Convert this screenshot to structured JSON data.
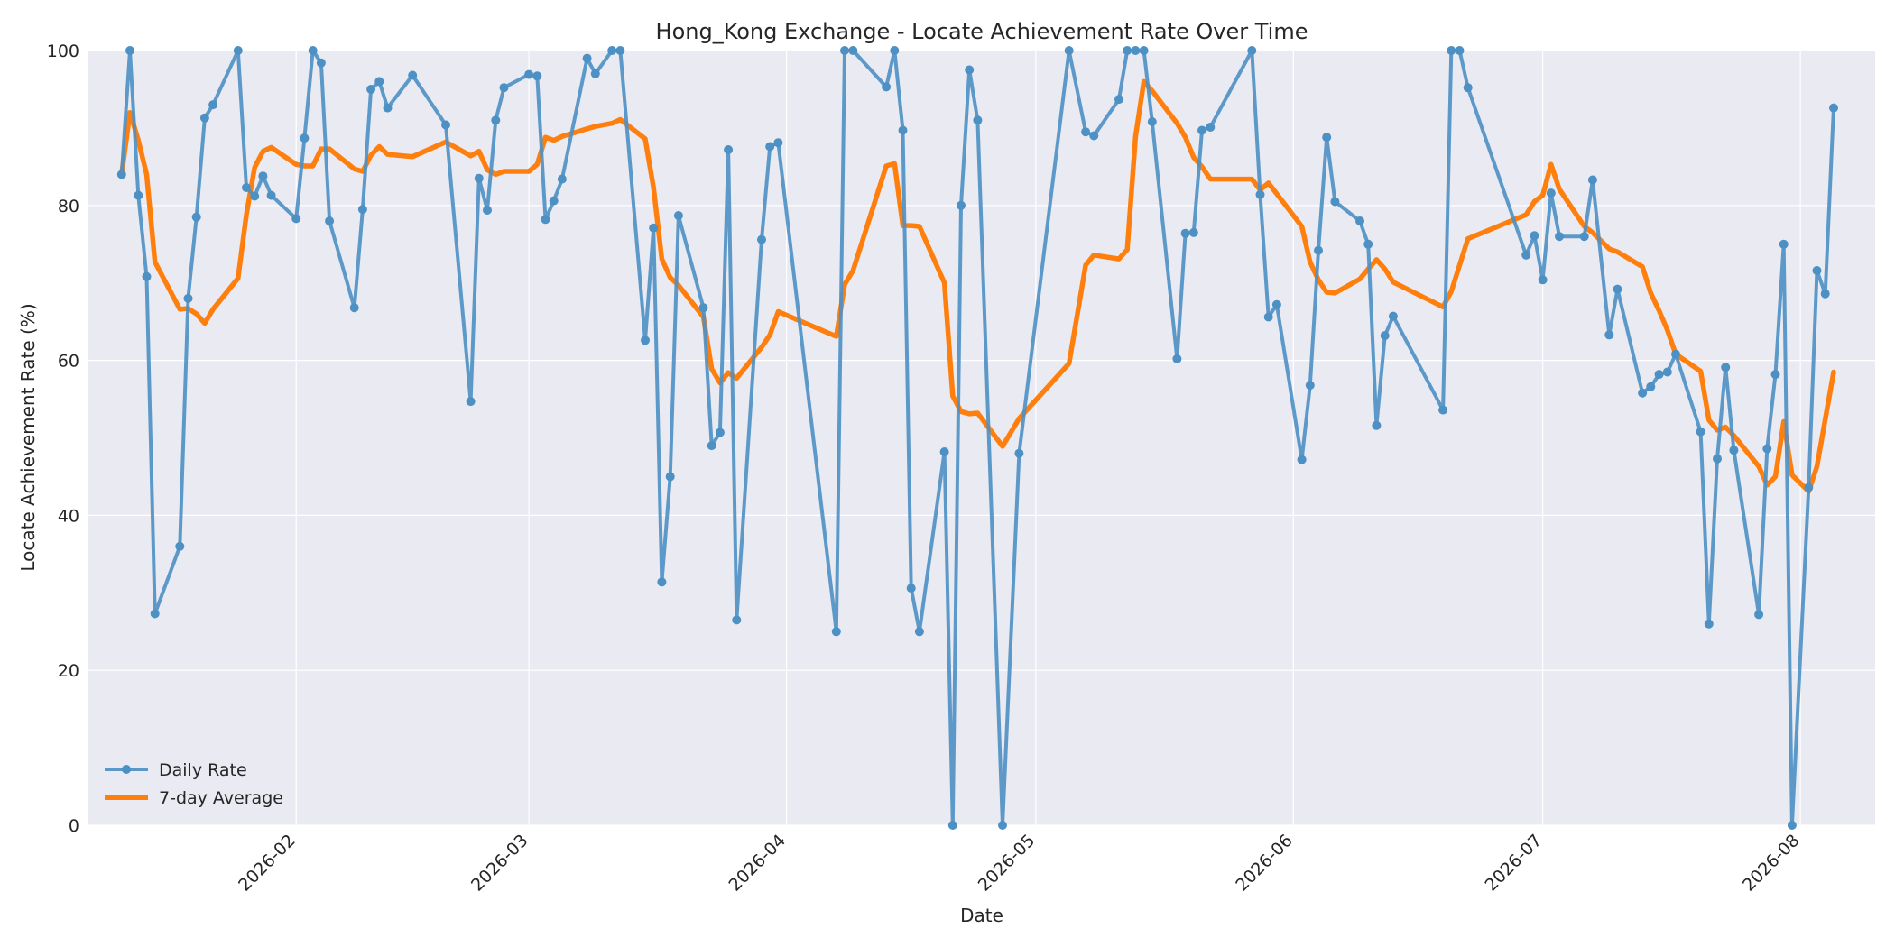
{
  "chart_data": {
    "type": "line",
    "title": "Hong_Kong Exchange - Locate Achievement Rate Over Time",
    "xlabel": "Date",
    "ylabel": "Locate Achievement Rate (%)",
    "ylim": [
      0,
      100
    ],
    "xlim": [
      "2026-01-07",
      "2026-08-10"
    ],
    "y_ticks": [
      0,
      20,
      40,
      60,
      80,
      100
    ],
    "x_ticks": [
      "2026-02-01",
      "2026-03-01",
      "2026-04-01",
      "2026-05-01",
      "2026-06-01",
      "2026-07-01",
      "2026-08-01"
    ],
    "x_tick_labels": [
      "2026-02",
      "2026-03",
      "2026-04",
      "2026-05",
      "2026-06",
      "2026-07",
      "2026-08"
    ],
    "grid": true,
    "legend_position": "lower-left",
    "colors": {
      "daily": "#4c90c4",
      "average": "#ff7f0e",
      "plot_background": "#eaeaf2",
      "grid": "#ffffff"
    },
    "series": [
      {
        "name": "Daily Rate",
        "marker": "circle",
        "points": [
          [
            "2026-01-11",
            84
          ],
          [
            "2026-01-12",
            100
          ],
          [
            "2026-01-13",
            81.3
          ],
          [
            "2026-01-14",
            70.8
          ],
          [
            "2026-01-15",
            27.3
          ],
          [
            "2026-01-18",
            36
          ],
          [
            "2026-01-19",
            68
          ],
          [
            "2026-01-20",
            78.5
          ],
          [
            "2026-01-21",
            91.3
          ],
          [
            "2026-01-22",
            93
          ],
          [
            "2026-01-25",
            100
          ],
          [
            "2026-01-26",
            82.3
          ],
          [
            "2026-01-27",
            81.2
          ],
          [
            "2026-01-28",
            83.8
          ],
          [
            "2026-01-29",
            81.3
          ],
          [
            "2026-02-01",
            78.3
          ],
          [
            "2026-02-02",
            88.7
          ],
          [
            "2026-02-03",
            100
          ],
          [
            "2026-02-04",
            98.4
          ],
          [
            "2026-02-05",
            78
          ],
          [
            "2026-02-08",
            66.8
          ],
          [
            "2026-02-09",
            79.5
          ],
          [
            "2026-02-10",
            95
          ],
          [
            "2026-02-11",
            96
          ],
          [
            "2026-02-12",
            92.6
          ],
          [
            "2026-02-15",
            96.8
          ],
          [
            "2026-02-19",
            90.4
          ],
          [
            "2026-02-22",
            54.7
          ],
          [
            "2026-02-23",
            83.5
          ],
          [
            "2026-02-24",
            79.4
          ],
          [
            "2026-02-25",
            91
          ],
          [
            "2026-02-26",
            95.2
          ],
          [
            "2026-03-01",
            96.9
          ],
          [
            "2026-03-02",
            96.7
          ],
          [
            "2026-03-03",
            78.2
          ],
          [
            "2026-03-04",
            80.6
          ],
          [
            "2026-03-05",
            83.4
          ],
          [
            "2026-03-08",
            99
          ],
          [
            "2026-03-09",
            97
          ],
          [
            "2026-03-11",
            100
          ],
          [
            "2026-03-12",
            100
          ],
          [
            "2026-03-15",
            62.6
          ],
          [
            "2026-03-16",
            77.1
          ],
          [
            "2026-03-17",
            31.4
          ],
          [
            "2026-03-18",
            45
          ],
          [
            "2026-03-19",
            78.7
          ],
          [
            "2026-03-22",
            66.8
          ],
          [
            "2026-03-23",
            49
          ],
          [
            "2026-03-24",
            50.7
          ],
          [
            "2026-03-25",
            87.2
          ],
          [
            "2026-03-26",
            26.5
          ],
          [
            "2026-03-29",
            75.6
          ],
          [
            "2026-03-30",
            87.6
          ],
          [
            "2026-03-31",
            88.1
          ],
          [
            "2026-04-07",
            25
          ],
          [
            "2026-04-08",
            100
          ],
          [
            "2026-04-09",
            100
          ],
          [
            "2026-04-13",
            95.3
          ],
          [
            "2026-04-14",
            100
          ],
          [
            "2026-04-15",
            89.7
          ],
          [
            "2026-04-16",
            30.6
          ],
          [
            "2026-04-17",
            25
          ],
          [
            "2026-04-20",
            48.2
          ],
          [
            "2026-04-21",
            0
          ],
          [
            "2026-04-22",
            80
          ],
          [
            "2026-04-23",
            97.5
          ],
          [
            "2026-04-24",
            91
          ],
          [
            "2026-04-27",
            0
          ],
          [
            "2026-04-29",
            48
          ],
          [
            "2026-05-05",
            100
          ],
          [
            "2026-05-07",
            89.5
          ],
          [
            "2026-05-08",
            89
          ],
          [
            "2026-05-11",
            93.7
          ],
          [
            "2026-05-12",
            100
          ],
          [
            "2026-05-13",
            100
          ],
          [
            "2026-05-14",
            100
          ],
          [
            "2026-05-15",
            90.8
          ],
          [
            "2026-05-18",
            60.2
          ],
          [
            "2026-05-19",
            76.4
          ],
          [
            "2026-05-20",
            76.5
          ],
          [
            "2026-05-21",
            89.7
          ],
          [
            "2026-05-22",
            90.1
          ],
          [
            "2026-05-27",
            100
          ],
          [
            "2026-05-28",
            81.4
          ],
          [
            "2026-05-29",
            65.6
          ],
          [
            "2026-05-30",
            67.2
          ],
          [
            "2026-06-02",
            47.2
          ],
          [
            "2026-06-03",
            56.8
          ],
          [
            "2026-06-04",
            74.2
          ],
          [
            "2026-06-05",
            88.8
          ],
          [
            "2026-06-06",
            80.5
          ],
          [
            "2026-06-09",
            78
          ],
          [
            "2026-06-10",
            75
          ],
          [
            "2026-06-11",
            51.6
          ],
          [
            "2026-06-12",
            63.2
          ],
          [
            "2026-06-13",
            65.7
          ],
          [
            "2026-06-19",
            53.6
          ],
          [
            "2026-06-20",
            100
          ],
          [
            "2026-06-21",
            100
          ],
          [
            "2026-06-22",
            95.2
          ],
          [
            "2026-06-29",
            73.6
          ],
          [
            "2026-06-30",
            76.1
          ],
          [
            "2026-07-01",
            70.4
          ],
          [
            "2026-07-02",
            81.6
          ],
          [
            "2026-07-03",
            76
          ],
          [
            "2026-07-06",
            76
          ],
          [
            "2026-07-07",
            83.3
          ],
          [
            "2026-07-09",
            63.3
          ],
          [
            "2026-07-10",
            69.2
          ],
          [
            "2026-07-13",
            55.8
          ],
          [
            "2026-07-14",
            56.6
          ],
          [
            "2026-07-15",
            58.2
          ],
          [
            "2026-07-16",
            58.5
          ],
          [
            "2026-07-17",
            60.8
          ],
          [
            "2026-07-20",
            50.8
          ],
          [
            "2026-07-21",
            26
          ],
          [
            "2026-07-22",
            47.3
          ],
          [
            "2026-07-23",
            59.1
          ],
          [
            "2026-07-24",
            48.4
          ],
          [
            "2026-07-27",
            27.2
          ],
          [
            "2026-07-28",
            48.6
          ],
          [
            "2026-07-29",
            58.2
          ],
          [
            "2026-07-30",
            75
          ],
          [
            "2026-07-31",
            0
          ],
          [
            "2026-08-02",
            43.6
          ],
          [
            "2026-08-03",
            71.6
          ],
          [
            "2026-08-04",
            68.6
          ],
          [
            "2026-08-05",
            92.6
          ]
        ]
      },
      {
        "name": "7-day Average",
        "points": [
          [
            "2026-01-11",
            84
          ],
          [
            "2026-01-12",
            92
          ],
          [
            "2026-01-13",
            88.4
          ],
          [
            "2026-01-14",
            84
          ],
          [
            "2026-01-15",
            72.7
          ],
          [
            "2026-01-18",
            66.6
          ],
          [
            "2026-01-19",
            66.7
          ],
          [
            "2026-01-20",
            66
          ],
          [
            "2026-01-21",
            64.8
          ],
          [
            "2026-01-22",
            66.6
          ],
          [
            "2026-01-25",
            70.6
          ],
          [
            "2026-01-26",
            78.8
          ],
          [
            "2026-01-27",
            84.9
          ],
          [
            "2026-01-28",
            87
          ],
          [
            "2026-01-29",
            87.5
          ],
          [
            "2026-02-01",
            85.3
          ],
          [
            "2026-02-02",
            85.1
          ],
          [
            "2026-02-03",
            85.1
          ],
          [
            "2026-02-04",
            87.3
          ],
          [
            "2026-02-05",
            87.3
          ],
          [
            "2026-02-08",
            84.7
          ],
          [
            "2026-02-09",
            84.4
          ],
          [
            "2026-02-10",
            86.5
          ],
          [
            "2026-02-11",
            87.6
          ],
          [
            "2026-02-12",
            86.6
          ],
          [
            "2026-02-15",
            86.3
          ],
          [
            "2026-02-19",
            88.2
          ],
          [
            "2026-02-22",
            86.4
          ],
          [
            "2026-02-23",
            87
          ],
          [
            "2026-02-24",
            84.6
          ],
          [
            "2026-02-25",
            84
          ],
          [
            "2026-02-26",
            84.4
          ],
          [
            "2026-03-01",
            84.4
          ],
          [
            "2026-03-02",
            85.3
          ],
          [
            "2026-03-03",
            88.8
          ],
          [
            "2026-03-04",
            88.4
          ],
          [
            "2026-03-05",
            88.9
          ],
          [
            "2026-03-08",
            89.9
          ],
          [
            "2026-03-09",
            90.2
          ],
          [
            "2026-03-11",
            90.6
          ],
          [
            "2026-03-12",
            91.1
          ],
          [
            "2026-03-15",
            88.6
          ],
          [
            "2026-03-16",
            82.3
          ],
          [
            "2026-03-17",
            73.1
          ],
          [
            "2026-03-18",
            70.7
          ],
          [
            "2026-03-19",
            69.7
          ],
          [
            "2026-03-22",
            65.6
          ],
          [
            "2026-03-23",
            58.9
          ],
          [
            "2026-03-24",
            57.1
          ],
          [
            "2026-03-25",
            58.4
          ],
          [
            "2026-03-26",
            57.7
          ],
          [
            "2026-03-29",
            61.7
          ],
          [
            "2026-03-30",
            63.3
          ],
          [
            "2026-03-31",
            66.3
          ],
          [
            "2026-04-07",
            63.1
          ],
          [
            "2026-04-08",
            69.8
          ],
          [
            "2026-04-09",
            71.6
          ],
          [
            "2026-04-13",
            85.1
          ],
          [
            "2026-04-14",
            85.4
          ],
          [
            "2026-04-15",
            77.4
          ],
          [
            "2026-04-16",
            77.4
          ],
          [
            "2026-04-17",
            77.3
          ],
          [
            "2026-04-20",
            70
          ],
          [
            "2026-04-21",
            55.4
          ],
          [
            "2026-04-22",
            53.4
          ],
          [
            "2026-04-23",
            53.1
          ],
          [
            "2026-04-24",
            53.2
          ],
          [
            "2026-04-27",
            48.9
          ],
          [
            "2026-04-29",
            52.5
          ],
          [
            "2026-05-05",
            59.6
          ],
          [
            "2026-05-07",
            72.3
          ],
          [
            "2026-05-08",
            73.6
          ],
          [
            "2026-05-11",
            73.1
          ],
          [
            "2026-05-12",
            74.3
          ],
          [
            "2026-05-13",
            88.9
          ],
          [
            "2026-05-14",
            96
          ],
          [
            "2026-05-15",
            94.8
          ],
          [
            "2026-05-18",
            90.6
          ],
          [
            "2026-05-19",
            88.8
          ],
          [
            "2026-05-20",
            86.2
          ],
          [
            "2026-05-21",
            85
          ],
          [
            "2026-05-22",
            83.4
          ],
          [
            "2026-05-27",
            83.4
          ],
          [
            "2026-05-28",
            82
          ],
          [
            "2026-05-29",
            82.9
          ],
          [
            "2026-06-02",
            77.3
          ],
          [
            "2026-06-03",
            72.7
          ],
          [
            "2026-06-04",
            70.4
          ],
          [
            "2026-06-05",
            68.8
          ],
          [
            "2026-06-06",
            68.7
          ],
          [
            "2026-06-09",
            70.5
          ],
          [
            "2026-06-10",
            71.8
          ],
          [
            "2026-06-11",
            73
          ],
          [
            "2026-06-12",
            71.8
          ],
          [
            "2026-06-13",
            70.1
          ],
          [
            "2026-06-19",
            66.9
          ],
          [
            "2026-06-20",
            68.9
          ],
          [
            "2026-06-21",
            72.3
          ],
          [
            "2026-06-22",
            75.7
          ],
          [
            "2026-06-29",
            78.8
          ],
          [
            "2026-06-30",
            80.5
          ],
          [
            "2026-07-01",
            81.3
          ],
          [
            "2026-07-02",
            85.3
          ],
          [
            "2026-07-03",
            82.1
          ],
          [
            "2026-07-06",
            77.3
          ],
          [
            "2026-07-07",
            76.5
          ],
          [
            "2026-07-09",
            74.4
          ],
          [
            "2026-07-10",
            74
          ],
          [
            "2026-07-13",
            72.1
          ],
          [
            "2026-07-14",
            68.7
          ],
          [
            "2026-07-15",
            66.4
          ],
          [
            "2026-07-16",
            63.9
          ],
          [
            "2026-07-17",
            60.8
          ],
          [
            "2026-07-20",
            58.6
          ],
          [
            "2026-07-21",
            52.3
          ],
          [
            "2026-07-22",
            51
          ],
          [
            "2026-07-23",
            51.4
          ],
          [
            "2026-07-24",
            50.3
          ],
          [
            "2026-07-27",
            46.3
          ],
          [
            "2026-07-28",
            43.9
          ],
          [
            "2026-07-29",
            45
          ],
          [
            "2026-07-30",
            52.1
          ],
          [
            "2026-07-31",
            45.2
          ],
          [
            "2026-08-02",
            43.1
          ],
          [
            "2026-08-03",
            46.3
          ],
          [
            "2026-08-04",
            52.4
          ],
          [
            "2026-08-05",
            58.5
          ]
        ]
      }
    ]
  }
}
